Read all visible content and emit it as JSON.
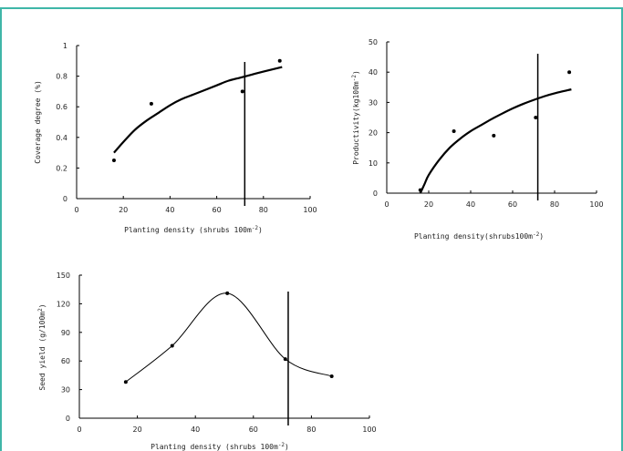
{
  "chart_data": [
    {
      "type": "scatter",
      "xlabel": "Planting density (shrubs 100m",
      "xlabel_sup": "-2",
      "xlabel_tail": ")",
      "ylabel": "Coverage degree (%)",
      "xlim": [
        0,
        100
      ],
      "ylim": [
        0,
        1
      ],
      "xticks": [
        "0",
        "20",
        "40",
        "60",
        "80",
        "100"
      ],
      "yticks": [
        "0",
        "0.2",
        "0.4",
        "0.6",
        "0.8",
        "1"
      ],
      "points": [
        [
          16,
          0.25
        ],
        [
          32,
          0.62
        ],
        [
          71,
          0.7
        ],
        [
          87,
          0.9
        ]
      ],
      "fit": [
        [
          16,
          0.3
        ],
        [
          20,
          0.37
        ],
        [
          25,
          0.45
        ],
        [
          30,
          0.51
        ],
        [
          35,
          0.56
        ],
        [
          40,
          0.61
        ],
        [
          45,
          0.65
        ],
        [
          50,
          0.68
        ],
        [
          55,
          0.71
        ],
        [
          60,
          0.74
        ],
        [
          65,
          0.77
        ],
        [
          70,
          0.79
        ],
        [
          75,
          0.81
        ],
        [
          80,
          0.83
        ],
        [
          88,
          0.86
        ]
      ],
      "vline": 72
    },
    {
      "type": "scatter",
      "xlabel": "Planting density(shrubs100m",
      "xlabel_sup": "-2",
      "xlabel_tail": ")",
      "ylabel": "Productivity(kg100m",
      "ylabel_sup": "-2",
      "ylabel_tail": ")",
      "xlim": [
        0,
        100
      ],
      "ylim": [
        0,
        50
      ],
      "xticks": [
        "0",
        "20",
        "40",
        "60",
        "80",
        "100"
      ],
      "yticks": [
        "0",
        "10",
        "20",
        "30",
        "40",
        "50"
      ],
      "points": [
        [
          16,
          1
        ],
        [
          32,
          20.5
        ],
        [
          51,
          19
        ],
        [
          71,
          25
        ],
        [
          87,
          40
        ]
      ],
      "fit": [
        [
          16,
          0
        ],
        [
          18,
          3
        ],
        [
          20,
          6
        ],
        [
          25,
          11
        ],
        [
          30,
          15
        ],
        [
          35,
          18
        ],
        [
          40,
          20.5
        ],
        [
          45,
          22.5
        ],
        [
          50,
          24.5
        ],
        [
          55,
          26.3
        ],
        [
          60,
          28
        ],
        [
          65,
          29.5
        ],
        [
          70,
          30.8
        ],
        [
          75,
          32
        ],
        [
          80,
          33
        ],
        [
          88,
          34.3
        ]
      ],
      "vline": 72
    },
    {
      "type": "line",
      "xlabel": "Planting density (shrubs 100m",
      "xlabel_sup": "-2",
      "xlabel_tail": ")",
      "ylabel": "Seed yield  (g/100m",
      "ylabel_sup": "2",
      "ylabel_tail": ")",
      "xlim": [
        0,
        100
      ],
      "ylim": [
        0,
        150
      ],
      "xticks": [
        "0",
        "20",
        "40",
        "60",
        "80",
        "100"
      ],
      "yticks": [
        "0",
        "30",
        "60",
        "90",
        "120",
        "150"
      ],
      "points": [
        [
          16,
          38
        ],
        [
          32,
          76
        ],
        [
          51,
          131
        ],
        [
          71,
          62
        ],
        [
          87,
          44
        ]
      ],
      "vline": 72
    }
  ]
}
